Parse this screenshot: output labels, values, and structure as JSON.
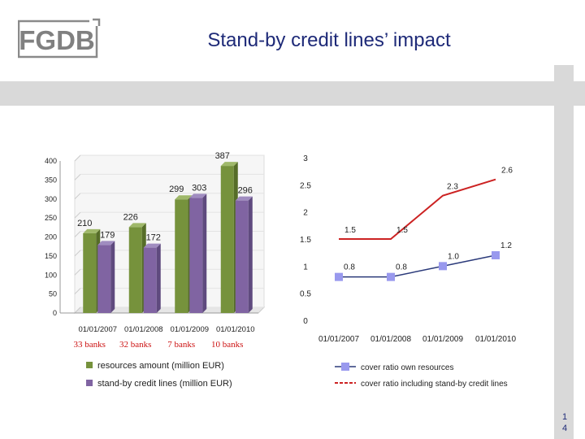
{
  "header": {
    "logo_text": "FGDB",
    "title": "Stand-by credit lines’ impact",
    "page_number": "1\n4"
  },
  "colors": {
    "green_series": "#76923c",
    "purple_series": "#8064a2",
    "blue_series": "#9999ee",
    "red_series": "#cc2222",
    "title_color": "#1e2a78"
  },
  "bank_labels": [
    "33 banks",
    "32 banks",
    "7 banks",
    "10 banks"
  ],
  "chart_data": [
    {
      "type": "bar",
      "categories": [
        "01/01/2007",
        "01/01/2008",
        "01/01/2009",
        "01/01/2010"
      ],
      "series": [
        {
          "name": "resources amount (million EUR)",
          "values": [
            210,
            226,
            299,
            387
          ],
          "labels": [
            "210",
            "226",
            "299",
            "387"
          ]
        },
        {
          "name": "stand-by credit lines (million EUR)",
          "values": [
            179,
            172,
            303,
            296
          ],
          "labels": [
            "179",
            "172",
            "303",
            "296"
          ]
        }
      ],
      "yticks": [
        "0",
        "50",
        "100",
        "150",
        "200",
        "250",
        "300",
        "350",
        "400"
      ],
      "ylim": [
        0,
        400
      ],
      "legend": "bottom"
    },
    {
      "type": "line",
      "categories": [
        "01/01/2007",
        "01/01/2008",
        "01/01/2009",
        "01/01/2010"
      ],
      "series": [
        {
          "name": "cover ratio own resources",
          "values": [
            0.8,
            0.8,
            1.0,
            1.2
          ],
          "labels": [
            "0.8",
            "0.8",
            "1.0",
            "1.2"
          ]
        },
        {
          "name": "cover ratio including stand-by credit lines",
          "values": [
            1.5,
            1.5,
            2.3,
            2.6
          ],
          "labels": [
            "1.5",
            "1.5",
            "2.3",
            "2.6"
          ]
        }
      ],
      "yticks": [
        "0",
        "0.5",
        "1",
        "1.5",
        "2",
        "2.5",
        "3"
      ],
      "ylim": [
        0,
        3
      ],
      "legend": "bottom"
    }
  ]
}
